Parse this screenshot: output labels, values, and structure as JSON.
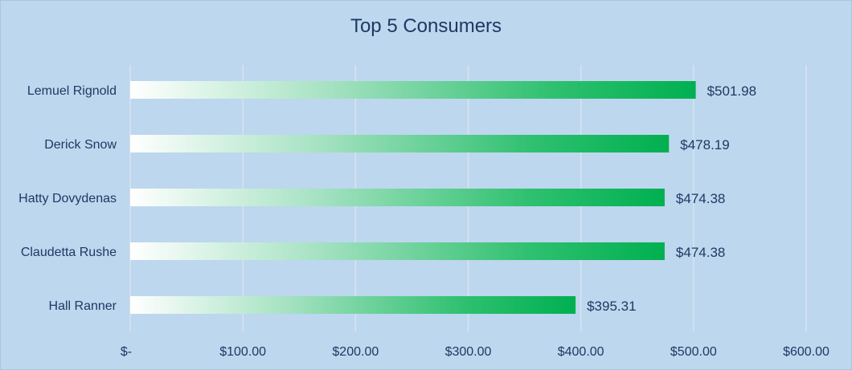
{
  "chart_data": {
    "type": "bar",
    "orientation": "horizontal",
    "title": "Top 5 Consumers",
    "xlabel": "",
    "ylabel": "",
    "categories": [
      "Lemuel Rignold",
      "Derick Snow",
      "Hatty Dovydenas",
      "Claudetta Rushe",
      "Hall Ranner"
    ],
    "values": [
      501.98,
      478.19,
      474.38,
      474.38,
      395.31
    ],
    "data_labels": [
      "$501.98",
      "$478.19",
      "$474.38",
      "$474.38",
      "$395.31"
    ],
    "xlim": [
      0,
      600
    ],
    "ticks": [
      0,
      100,
      200,
      300,
      400,
      500,
      600
    ],
    "tick_labels": [
      "$-",
      "$100.00",
      "$200.00",
      "$300.00",
      "$400.00",
      "$500.00",
      "$600.00"
    ],
    "grid": "vertical",
    "legend": "none",
    "colors": {
      "background": "#bdd7ee",
      "bar_start": "#ffffff",
      "bar_end": "#00b050",
      "gridline": "#d9e4ef",
      "text": "#1f3864"
    }
  }
}
